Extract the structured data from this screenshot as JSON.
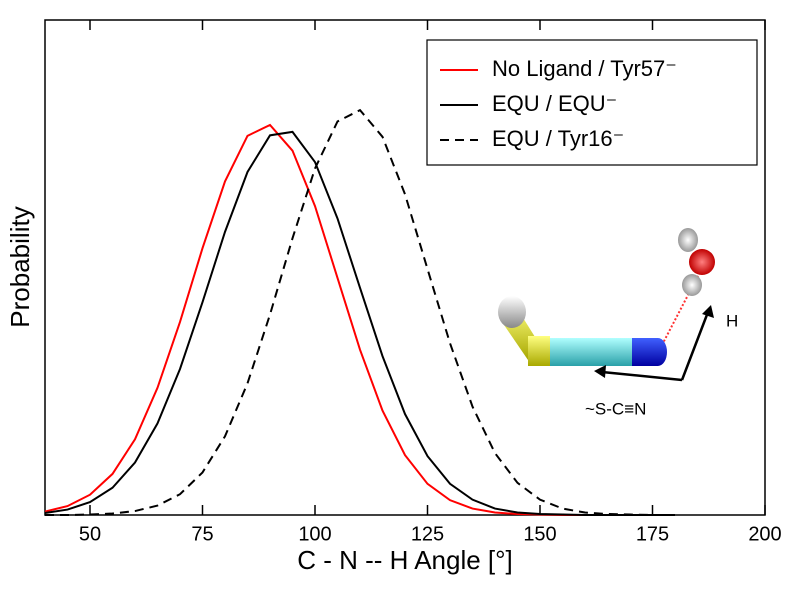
{
  "chart_data": {
    "type": "line",
    "xlabel": "C - N -- H Angle [°]",
    "ylabel": "Probability",
    "x": [
      40,
      45,
      50,
      55,
      60,
      65,
      70,
      75,
      80,
      85,
      90,
      95,
      100,
      105,
      110,
      115,
      120,
      125,
      130,
      135,
      140,
      145,
      150,
      155,
      160,
      165,
      170,
      175,
      180
    ],
    "series": [
      {
        "name": "No Ligand / Tyr57⁻",
        "color": "#ff0000",
        "dash": false,
        "values": [
          0.007,
          0.018,
          0.041,
          0.083,
          0.153,
          0.257,
          0.39,
          0.539,
          0.674,
          0.766,
          0.788,
          0.736,
          0.624,
          0.479,
          0.334,
          0.211,
          0.121,
          0.063,
          0.03,
          0.013,
          0.005,
          0.002,
          0.001,
          0,
          0,
          0,
          0,
          0,
          0
        ]
      },
      {
        "name": "EQU / EQU⁻",
        "color": "#000000",
        "dash": false,
        "values": [
          0.004,
          0.011,
          0.026,
          0.055,
          0.106,
          0.185,
          0.295,
          0.43,
          0.572,
          0.693,
          0.767,
          0.774,
          0.713,
          0.599,
          0.459,
          0.321,
          0.204,
          0.119,
          0.063,
          0.031,
          0.013,
          0.005,
          0.002,
          0.001,
          0,
          0,
          0,
          0,
          0
        ]
      },
      {
        "name": "EQU / Tyr16⁻",
        "color": "#000000",
        "dash": true,
        "values": [
          0,
          0,
          0.001,
          0.003,
          0.008,
          0.019,
          0.042,
          0.086,
          0.159,
          0.266,
          0.405,
          0.559,
          0.7,
          0.795,
          0.818,
          0.764,
          0.648,
          0.497,
          0.347,
          0.219,
          0.125,
          0.065,
          0.031,
          0.013,
          0.005,
          0.002,
          0.001,
          0,
          0
        ]
      }
    ],
    "xlim": [
      40,
      200
    ],
    "xticks": [
      50,
      75,
      100,
      125,
      150,
      175,
      200
    ],
    "ylim": [
      0,
      1
    ],
    "legend": "upper right",
    "annotations": [
      "H",
      "~S-C≡N"
    ]
  }
}
